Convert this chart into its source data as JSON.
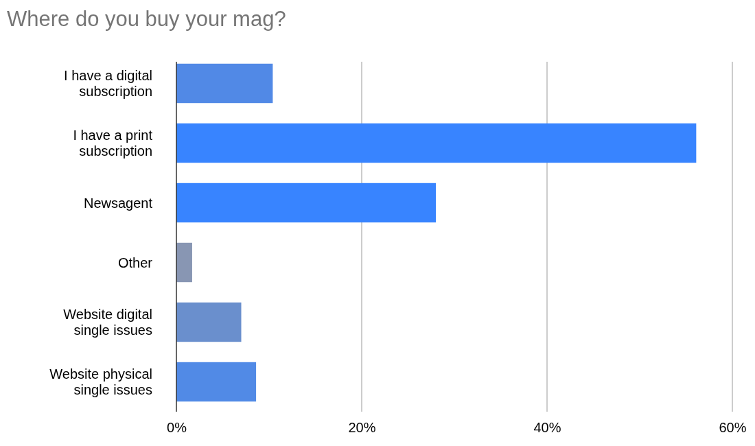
{
  "chart_data": {
    "type": "bar",
    "orientation": "horizontal",
    "title": "Where do you buy your mag?",
    "categories": [
      "I have a digital subscription",
      "I have a print subscription",
      "Newsagent",
      "Other",
      "Website digital single issues",
      "Website physical single issues"
    ],
    "values": [
      10.4,
      56.1,
      28,
      1.7,
      7,
      8.6
    ],
    "colors": [
      "#5189e6",
      "#3884ff",
      "#3884ff",
      "#8896b3",
      "#6a8fcd",
      "#518ae6"
    ],
    "xlim": [
      0,
      60
    ],
    "xticks": [
      {
        "value": 0,
        "label": "0%"
      },
      {
        "value": 20,
        "label": "20%"
      },
      {
        "value": 40,
        "label": "40%"
      },
      {
        "value": 60,
        "label": "60%"
      }
    ],
    "grid": "x"
  }
}
